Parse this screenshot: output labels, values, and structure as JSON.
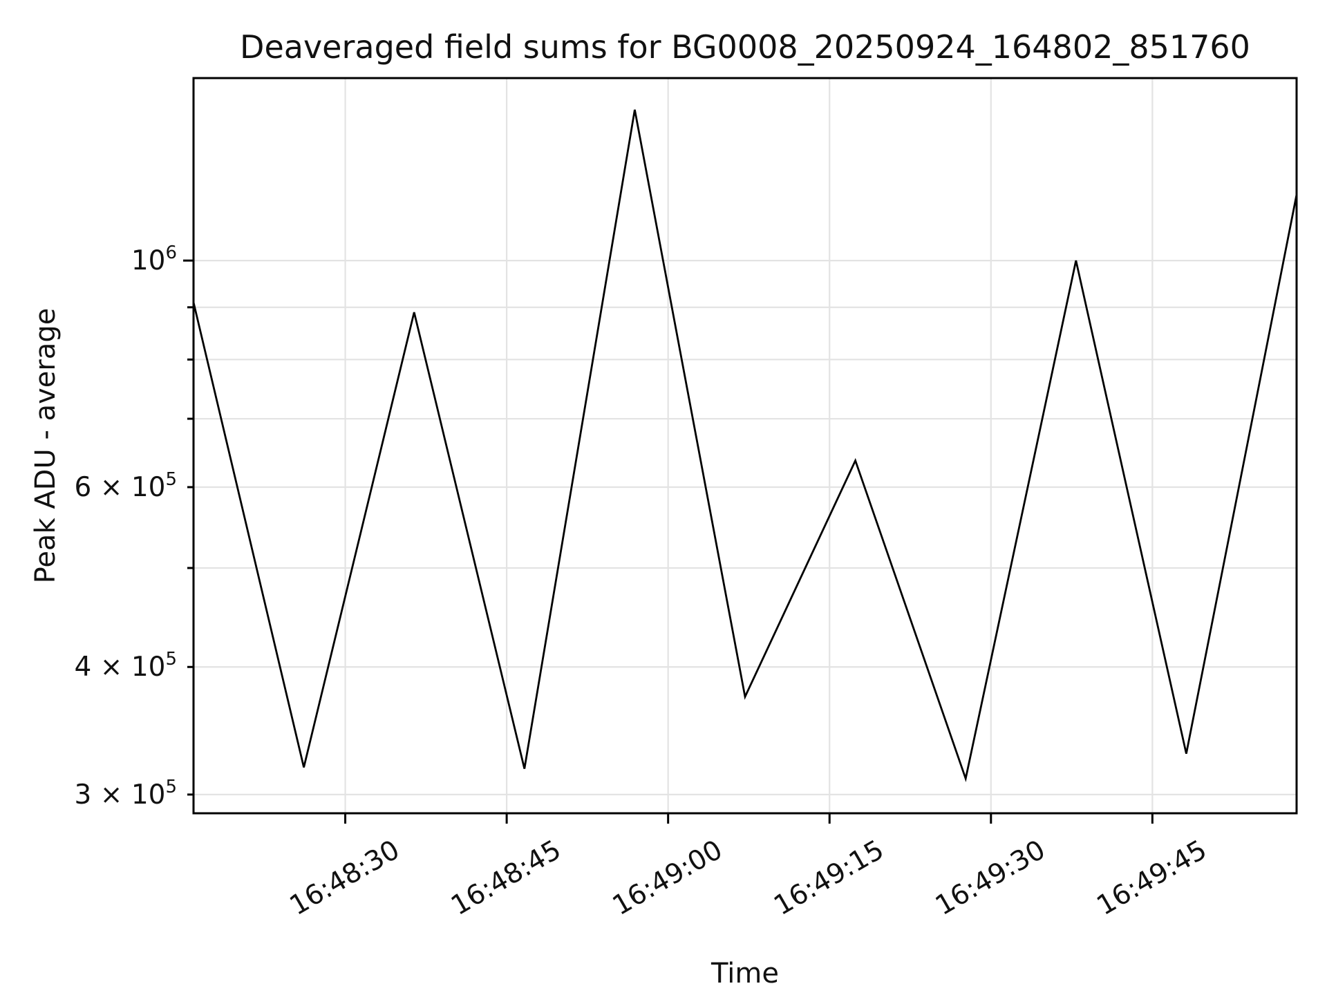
{
  "chart_data": {
    "type": "line",
    "title": "Deaveraged field sums for BG0008_20250924_164802_851760",
    "xlabel": "Time",
    "ylabel": "Peak ADU - average",
    "yscale": "log",
    "grid": "both",
    "legend": null,
    "line_color": "#000000",
    "grid_color": "#e3e3e3",
    "frame_color": "#000000",
    "x_unit": "seconds after 16:48:00",
    "xlim": [
      15.9,
      118.4
    ],
    "ylim": [
      287600,
      1509000
    ],
    "points": [
      {
        "t": 15.9,
        "time": "16:48:16",
        "value": 910000
      },
      {
        "t": 26.15,
        "time": "16:48:26",
        "value": 319000
      },
      {
        "t": 36.4,
        "time": "16:48:36",
        "value": 890000
      },
      {
        "t": 46.65,
        "time": "16:48:47",
        "value": 318000
      },
      {
        "t": 56.9,
        "time": "16:48:57",
        "value": 1405000
      },
      {
        "t": 67.15,
        "time": "16:49:07",
        "value": 374000
      },
      {
        "t": 77.4,
        "time": "16:49:17",
        "value": 637000
      },
      {
        "t": 87.65,
        "time": "16:49:28",
        "value": 311000
      },
      {
        "t": 97.9,
        "time": "16:49:38",
        "value": 1000000
      },
      {
        "t": 108.15,
        "time": "16:49:48",
        "value": 329000
      },
      {
        "t": 118.4,
        "time": "16:49:58",
        "value": 1160000
      }
    ],
    "xticks": [
      {
        "t": 30,
        "label": "16:48:30"
      },
      {
        "t": 45,
        "label": "16:48:45"
      },
      {
        "t": 60,
        "label": "16:49:00"
      },
      {
        "t": 75,
        "label": "16:49:15"
      },
      {
        "t": 90,
        "label": "16:49:30"
      },
      {
        "t": 105,
        "label": "16:49:45"
      }
    ],
    "yticks_labeled": [
      {
        "value": 1000000,
        "base": "10",
        "exp": "6",
        "major": true
      },
      {
        "value": 600000,
        "base": "6 × 10",
        "exp": "5",
        "major": false
      },
      {
        "value": 400000,
        "base": "4 × 10",
        "exp": "5",
        "major": false
      },
      {
        "value": 300000,
        "base": "3 × 10",
        "exp": "5",
        "major": false
      }
    ],
    "yticks_minor_unlabeled": [
      900000,
      800000,
      700000,
      500000
    ]
  }
}
